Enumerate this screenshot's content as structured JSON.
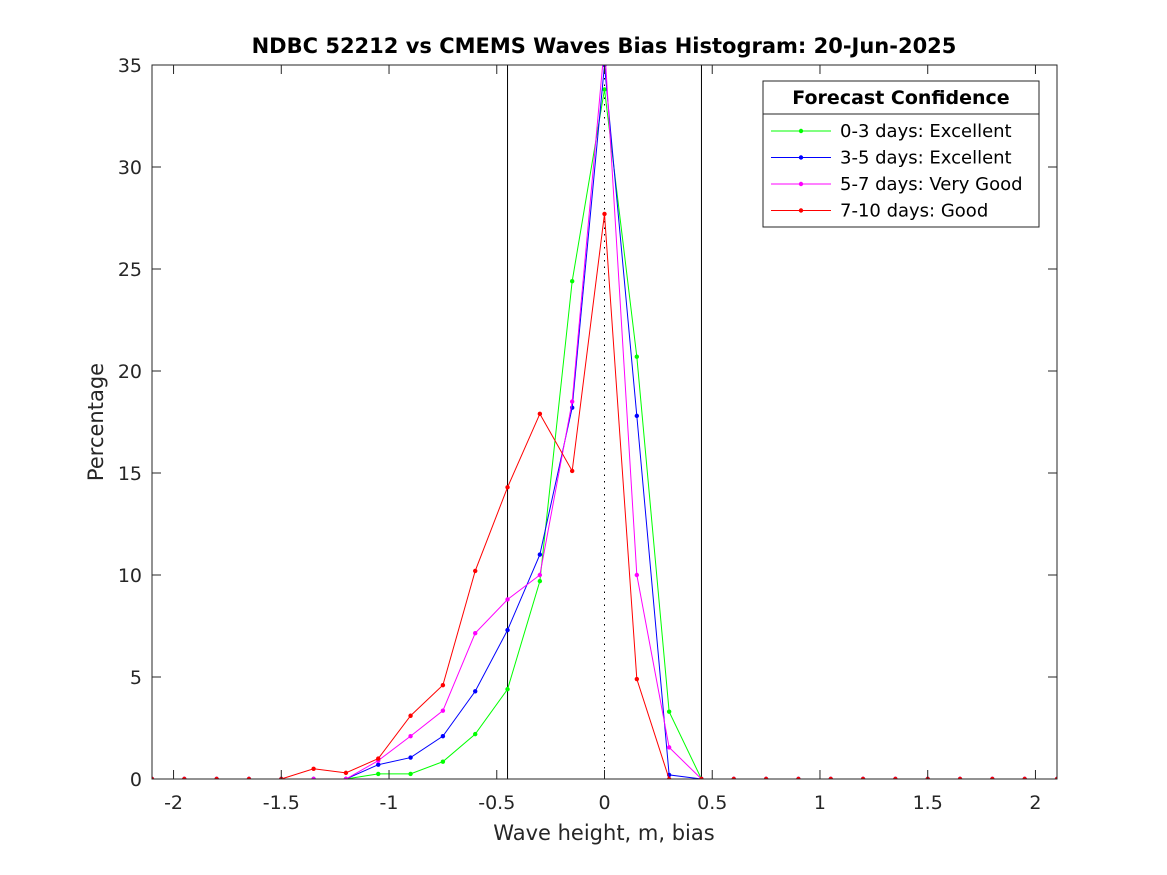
{
  "chart_data": {
    "type": "line",
    "title": "NDBC 52212 vs CMEMS Waves Bias Histogram: 20-Jun-2025",
    "xlabel": "Wave height, m, bias",
    "ylabel": "Percentage",
    "xlim": [
      -2.1,
      2.1
    ],
    "ylim": [
      0,
      35
    ],
    "xticks": [
      -2,
      -1.5,
      -1,
      -0.5,
      0,
      0.5,
      1,
      1.5,
      2
    ],
    "xtick_labels": [
      "-2",
      "-1.5",
      "-1",
      "-0.5",
      "0",
      "0.5",
      "1",
      "1.5",
      "2"
    ],
    "yticks": [
      0,
      5,
      10,
      15,
      20,
      25,
      30,
      35
    ],
    "ytick_labels": [
      "0",
      "5",
      "10",
      "15",
      "20",
      "25",
      "30",
      "35"
    ],
    "grid": false,
    "legend_position": "top-right",
    "legend_title": "Forecast Confidence",
    "reference_lines": {
      "solid_vertical": [
        -0.45,
        0.45
      ],
      "dotted_vertical": [
        0
      ]
    },
    "x": [
      -2.1,
      -1.95,
      -1.8,
      -1.65,
      -1.5,
      -1.35,
      -1.2,
      -1.05,
      -0.9,
      -0.75,
      -0.6,
      -0.45,
      -0.3,
      -0.15,
      0,
      0.15,
      0.3,
      0.45,
      0.6,
      0.75,
      0.9,
      1.05,
      1.2,
      1.35,
      1.5,
      1.65,
      1.8,
      1.95,
      2.1
    ],
    "series": [
      {
        "name": "0-3 days: Excellent",
        "color": "#00ff00",
        "values": [
          0,
          0,
          0,
          0,
          0,
          0,
          0,
          0.25,
          0.25,
          0.85,
          2.2,
          4.4,
          9.7,
          24.4,
          33.8,
          20.7,
          3.3,
          0,
          0,
          0,
          0,
          0,
          0,
          0,
          0,
          0,
          0,
          0,
          0
        ]
      },
      {
        "name": "3-5 days: Excellent",
        "color": "#0000ff",
        "values": [
          0,
          0,
          0,
          0,
          0,
          0,
          0,
          0.7,
          1.05,
          2.1,
          4.3,
          7.3,
          11.0,
          18.2,
          35.0,
          17.8,
          0.2,
          0,
          0,
          0,
          0,
          0,
          0,
          0,
          0,
          0,
          0,
          0,
          0
        ]
      },
      {
        "name": "5-7 days: Very Good",
        "color": "#ff00ff",
        "values": [
          0,
          0,
          0,
          0,
          0,
          0,
          0,
          0.9,
          2.1,
          3.35,
          7.15,
          8.8,
          10.0,
          18.5,
          36.0,
          10.0,
          1.55,
          0,
          0,
          0,
          0,
          0,
          0,
          0,
          0,
          0,
          0,
          0,
          0
        ]
      },
      {
        "name": "7-10 days: Good",
        "color": "#ff0000",
        "values": [
          0,
          0,
          0,
          0,
          0,
          0.5,
          0.3,
          1.0,
          3.1,
          4.6,
          10.2,
          14.3,
          17.9,
          15.1,
          27.7,
          4.9,
          0,
          0,
          0,
          0,
          0,
          0,
          0,
          0,
          0,
          0,
          0,
          0,
          0
        ]
      }
    ]
  }
}
